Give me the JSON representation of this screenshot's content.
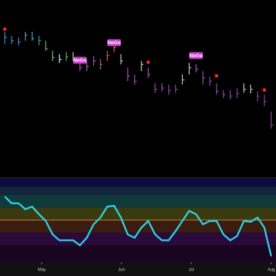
{
  "chart_data": [
    {
      "type": "ohlc",
      "x": [
        0,
        1,
        2,
        3,
        4,
        5,
        6,
        7,
        8,
        9,
        10,
        11,
        12,
        13,
        14,
        15,
        16,
        17,
        18,
        19,
        20,
        21,
        22,
        23,
        24,
        25,
        26,
        27,
        28,
        29,
        30,
        31,
        32,
        33,
        34,
        35,
        36,
        37,
        38,
        39
      ],
      "high": [
        213,
        207,
        205,
        213,
        213,
        207,
        200,
        185,
        180,
        183,
        183,
        170,
        170,
        177,
        173,
        185,
        195,
        180,
        160,
        150,
        170,
        160,
        137,
        137,
        135,
        135,
        150,
        167,
        165,
        155,
        147,
        137,
        127,
        127,
        130,
        137,
        135,
        125,
        120,
        95
      ],
      "low": [
        195,
        195,
        193,
        200,
        200,
        193,
        185,
        170,
        167,
        170,
        170,
        155,
        155,
        163,
        157,
        170,
        183,
        165,
        140,
        135,
        155,
        145,
        123,
        125,
        120,
        123,
        135,
        150,
        153,
        135,
        133,
        120,
        115,
        113,
        115,
        123,
        122,
        110,
        103,
        70
      ],
      "close": [
        205,
        200,
        198,
        208,
        203,
        200,
        188,
        175,
        172,
        176,
        174,
        160,
        162,
        170,
        165,
        178,
        190,
        170,
        148,
        140,
        165,
        150,
        128,
        130,
        126,
        128,
        142,
        160,
        158,
        145,
        140,
        125,
        120,
        118,
        122,
        128,
        128,
        118,
        110,
        75
      ],
      "colors": [
        "#3d8fd6",
        "#3d8fd6",
        "#3d8fd6",
        "#4a9ad8",
        "#4aa8c8",
        "#3aa3a0",
        "#4fb88a",
        "#6cc070",
        "#e8e8e8",
        "#5fb07a",
        "#c8c8c8",
        "#9b59b6",
        "#9b59b6",
        "#a05ab0",
        "#b05aa0",
        "#d06030",
        "#e0603a",
        "#c8c8c8",
        "#b04fc0",
        "#a04ab8",
        "#c8c8c8",
        "#b04fc0",
        "#9b4ab5",
        "#9b4ab5",
        "#9048b0",
        "#9048b0",
        "#c8c8c8",
        "#c8c8c8",
        "#b04fc0",
        "#9b4ab5",
        "#9048b0",
        "#9048b0",
        "#8a44a8",
        "#8a44a8",
        "#8a44a8",
        "#c8c8c8",
        "#c8c8c8",
        "#8a44a8",
        "#8a44a8",
        "#8a44a8"
      ],
      "xlim": [
        -0.5,
        39.5
      ],
      "ylim": [
        0,
        255
      ],
      "annotations": [
        {
          "x": 11,
          "y": 171,
          "text": "NoGo"
        },
        {
          "x": 16,
          "y": 197,
          "text": "NoGo"
        },
        {
          "x": 28,
          "y": 178,
          "text": "NoGo"
        }
      ],
      "signals": {
        "color": "#ff2a2a",
        "x": [
          0,
          21,
          31,
          38
        ],
        "y": [
          217,
          168,
          148,
          127
        ]
      }
    },
    {
      "type": "line",
      "x": [
        0,
        1,
        2,
        3,
        4,
        5,
        6,
        7,
        8,
        9,
        10,
        11,
        12,
        13,
        14,
        15,
        16,
        17,
        18,
        19,
        20,
        21,
        22,
        23,
        24,
        25,
        26,
        27,
        28,
        29,
        30,
        31,
        32,
        33,
        34,
        35,
        36,
        37,
        38,
        39
      ],
      "series": [
        {
          "color": "#2ad4e6",
          "values": [
            2.8,
            2,
            2,
            1.3,
            1.6,
            0.7,
            -0.1,
            -1.7,
            -2.4,
            -2.4,
            -2.4,
            -3,
            -2.1,
            -0.5,
            0.3,
            1.6,
            1.7,
            0.3,
            -1.7,
            -2.1,
            -0.9,
            -0.1,
            -1.7,
            -2.4,
            -2.4,
            -1.3,
            -0.1,
            1.1,
            0.7,
            -0.5,
            -0.1,
            -0.1,
            -1.7,
            -2.4,
            -1.9,
            -0.1,
            -0.2,
            0.3,
            -0.9,
            -4.3
          ]
        }
      ],
      "xlim": [
        -0.5,
        39.5
      ],
      "ylim": [
        -5,
        5
      ],
      "bands": [
        {
          "from": 4,
          "to": 5,
          "color": "#0b0b3c"
        },
        {
          "from": 3,
          "to": 4,
          "color": "#14243e"
        },
        {
          "from": 1.5,
          "to": 3,
          "color": "#0f3a3a"
        },
        {
          "from": 0,
          "to": 1.5,
          "color": "#3a3a10"
        },
        {
          "from": -1.5,
          "to": 0,
          "color": "#3a1c10"
        },
        {
          "from": -3,
          "to": -1.5,
          "color": "#2a0a3a"
        },
        {
          "from": -5,
          "to": -3,
          "color": "#1a0520"
        }
      ],
      "reference_line": {
        "value": 0,
        "color": "#d9822b"
      },
      "xticks": [
        {
          "value": 5.4,
          "label": "May"
        },
        {
          "value": 17.1,
          "label": "Jun"
        },
        {
          "value": 27.3,
          "label": "Jul"
        },
        {
          "value": 39,
          "label": "Aug"
        }
      ]
    }
  ]
}
